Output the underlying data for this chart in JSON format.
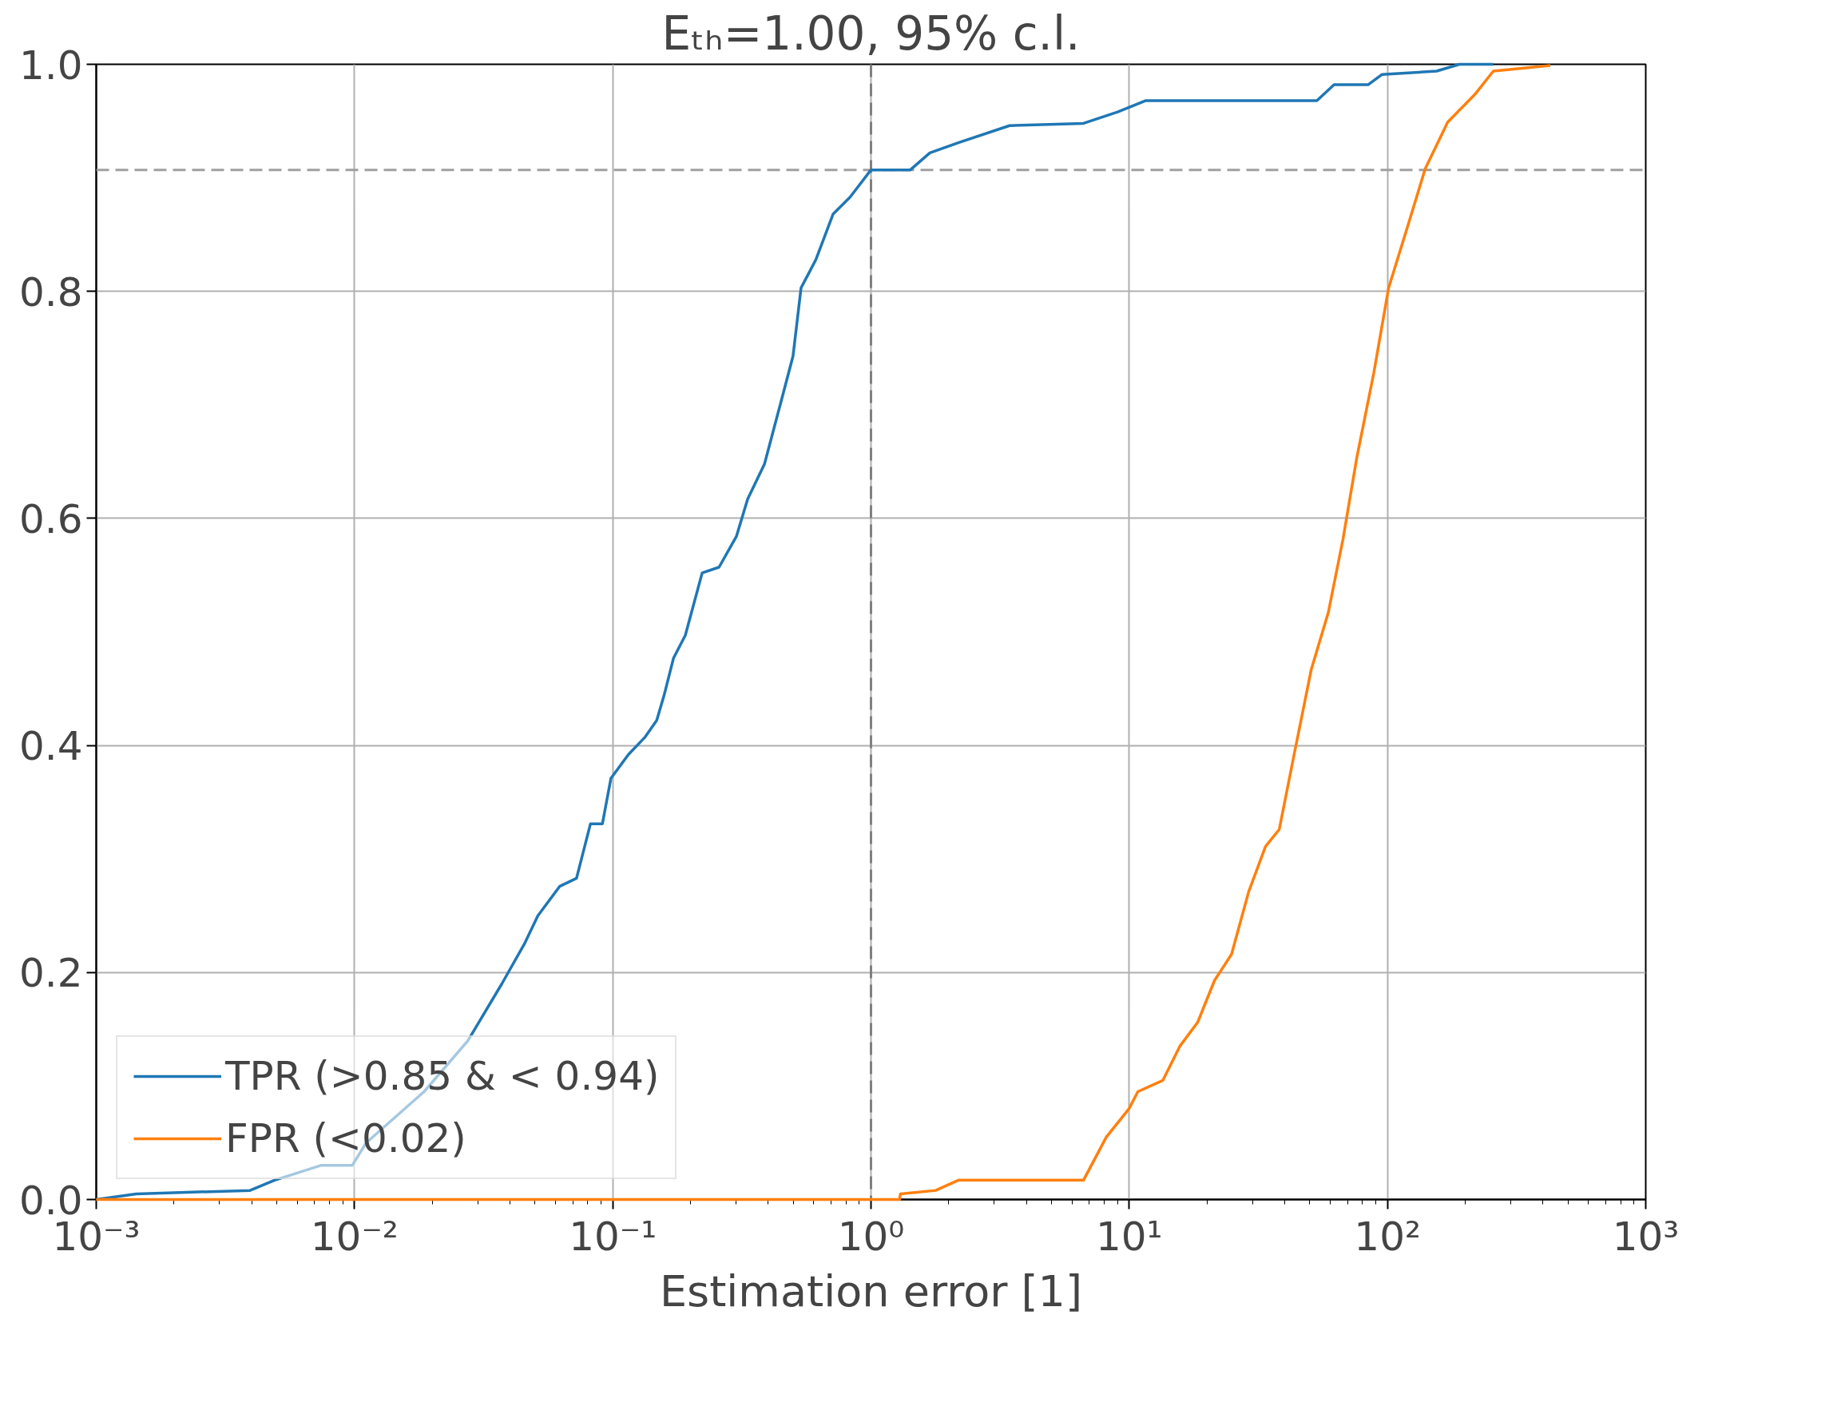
{
  "chart_data": {
    "type": "line",
    "title": "Eₜₕ=1.00, 95% c.l.",
    "xlabel": "Estimation error [1]",
    "log": "x",
    "grid": true,
    "legend": "bottom left",
    "line_style": "solid",
    "marker": "none",
    "xlim": [
      0.001,
      1000
    ],
    "ylim": [
      0,
      1
    ],
    "xticks": [
      {
        "value": 0.001,
        "label": "10⁻³"
      },
      {
        "value": 0.01,
        "label": "10⁻²"
      },
      {
        "value": 0.1,
        "label": "10⁻¹"
      },
      {
        "value": 1,
        "label": "10⁰"
      },
      {
        "value": 10,
        "label": "10¹"
      },
      {
        "value": 100,
        "label": "10²"
      },
      {
        "value": 1000,
        "label": "10³"
      }
    ],
    "yticks": [
      {
        "value": 0,
        "label": "0.0"
      },
      {
        "value": 0.2,
        "label": "0.2"
      },
      {
        "value": 0.4,
        "label": "0.4"
      },
      {
        "value": 0.6,
        "label": "0.6"
      },
      {
        "value": 0.8,
        "label": "0.8"
      },
      {
        "value": 1,
        "label": "1.0"
      }
    ],
    "ref_lines": [
      {
        "axis": "x",
        "value": 1,
        "color": "#808080",
        "line_style": "dashed"
      },
      {
        "axis": "y",
        "value": 0.907,
        "color": "#a0a0a0",
        "line_style": "dashed"
      }
    ],
    "series": [
      {
        "name": "TPR (>0.85 & < 0.94)",
        "color": "#1f77b4",
        "x": [
          0.001,
          0.00143,
          0.00394,
          0.0049,
          0.0074,
          0.0098,
          0.0111,
          0.0186,
          0.0275,
          0.0372,
          0.0457,
          0.0513,
          0.0624,
          0.0724,
          0.082,
          0.0912,
          0.0984,
          0.115,
          0.133,
          0.148,
          0.158,
          0.172,
          0.191,
          0.222,
          0.258,
          0.301,
          0.333,
          0.387,
          0.451,
          0.499,
          0.536,
          0.612,
          0.713,
          0.83,
          1.0,
          1.42,
          1.69,
          2.18,
          3.44,
          6.65,
          9.02,
          11.6,
          53.3,
          62.1,
          84.1,
          95.1,
          155,
          190,
          257
        ],
        "values": [
          0,
          0.005,
          0.008,
          0.017,
          0.03,
          0.03,
          0.05,
          0.095,
          0.14,
          0.19,
          0.226,
          0.25,
          0.276,
          0.283,
          0.331,
          0.331,
          0.371,
          0.392,
          0.407,
          0.422,
          0.444,
          0.477,
          0.497,
          0.552,
          0.557,
          0.584,
          0.617,
          0.648,
          0.705,
          0.743,
          0.803,
          0.828,
          0.868,
          0.883,
          0.907,
          0.907,
          0.922,
          0.931,
          0.946,
          0.948,
          0.958,
          0.968,
          0.968,
          0.982,
          0.982,
          0.991,
          0.994,
          1.0,
          1.0
        ]
      },
      {
        "name": "FPR (<0.02)",
        "color": "#ff7f0e",
        "x": [
          0.001,
          1.29,
          1.3,
          1.78,
          2.18,
          6.65,
          8.15,
          9.98,
          10.8,
          13.5,
          15.7,
          18.4,
          21.4,
          24.9,
          29.0,
          33.7,
          38.1,
          43.5,
          50.7,
          59.0,
          67.3,
          76.0,
          88.5,
          101,
          120,
          140,
          171,
          219,
          257,
          427
        ],
        "values": [
          0,
          0,
          0.005,
          0.008,
          0.017,
          0.017,
          0.055,
          0.08,
          0.095,
          0.105,
          0.135,
          0.156,
          0.193,
          0.216,
          0.271,
          0.311,
          0.326,
          0.392,
          0.467,
          0.517,
          0.582,
          0.653,
          0.728,
          0.803,
          0.858,
          0.908,
          0.949,
          0.974,
          0.994,
          0.999
        ]
      }
    ]
  }
}
